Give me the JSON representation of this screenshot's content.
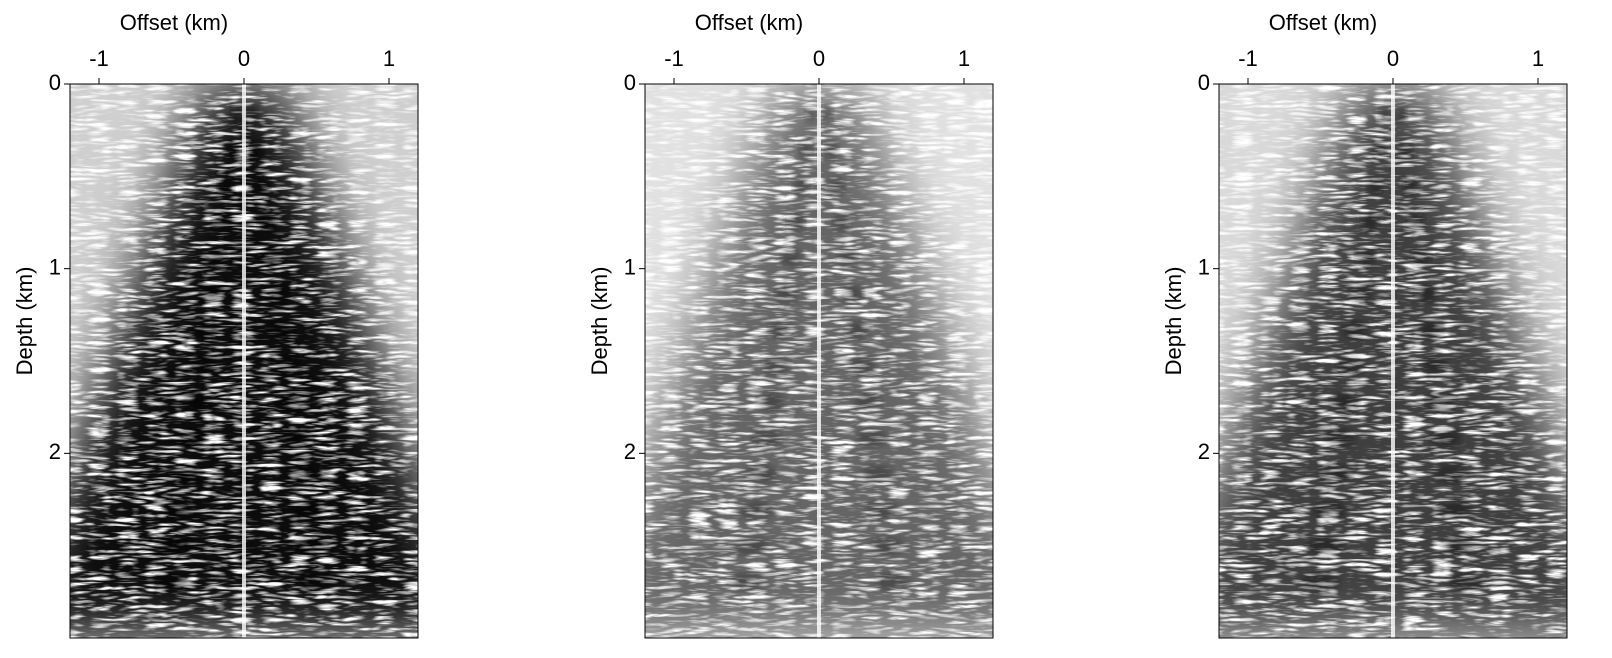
{
  "chart_data": [
    {
      "type": "image",
      "x_label": "Offset (km)",
      "y_label": "Depth (km)",
      "xlim": [
        -1.2,
        1.2
      ],
      "ylim": [
        0,
        3
      ],
      "y_inverted": true,
      "xticks": [
        -1,
        0,
        1
      ],
      "yticks": [
        0,
        1,
        2
      ]
    },
    {
      "type": "image",
      "x_label": "Offset (km)",
      "y_label": "Depth (km)",
      "xlim": [
        -1.2,
        1.2
      ],
      "ylim": [
        0,
        3
      ],
      "y_inverted": true,
      "xticks": [
        -1,
        0,
        1
      ],
      "yticks": [
        0,
        1,
        2
      ]
    },
    {
      "type": "image",
      "x_label": "Offset (km)",
      "y_label": "Depth (km)",
      "xlim": [
        -1.2,
        1.2
      ],
      "ylim": [
        0,
        3
      ],
      "y_inverted": true,
      "xticks": [
        -1,
        0,
        1
      ],
      "yticks": [
        0,
        1,
        2
      ]
    }
  ]
}
